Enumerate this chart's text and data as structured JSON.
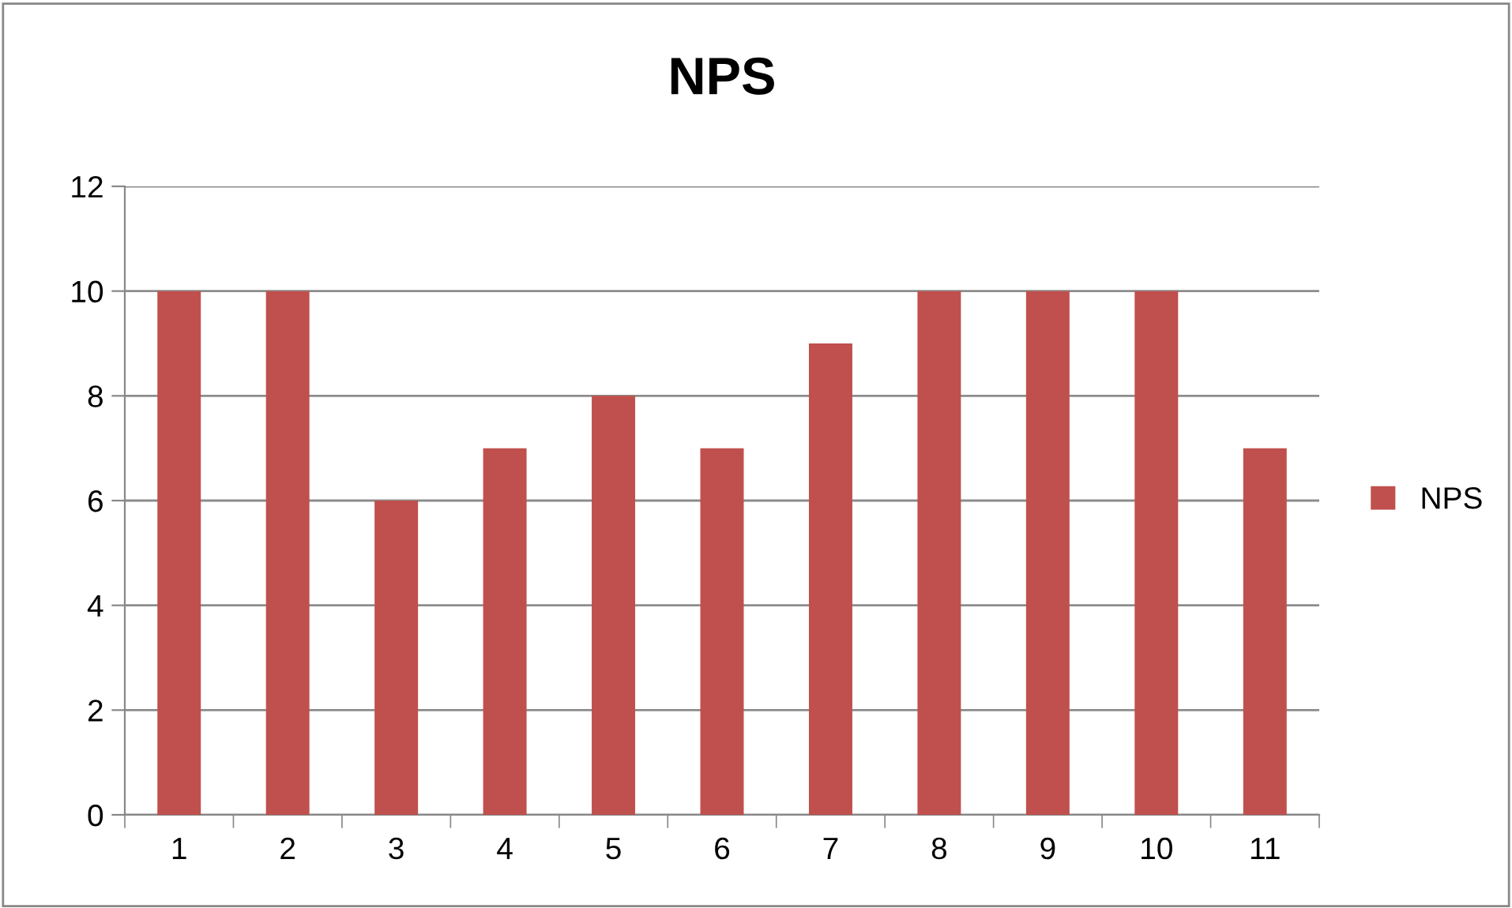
{
  "chart_data": {
    "type": "bar",
    "title": "NPS",
    "categories": [
      "1",
      "2",
      "3",
      "4",
      "5",
      "6",
      "7",
      "8",
      "9",
      "10",
      "11"
    ],
    "series": [
      {
        "name": "NPS",
        "color": "#c0504d",
        "values": [
          10,
          10,
          6,
          7,
          8,
          7,
          9,
          10,
          10,
          10,
          7
        ]
      }
    ],
    "ylim": [
      0,
      12
    ],
    "yticks": [
      0,
      2,
      4,
      6,
      8,
      10,
      12
    ],
    "grid": "y",
    "legend": "right"
  }
}
